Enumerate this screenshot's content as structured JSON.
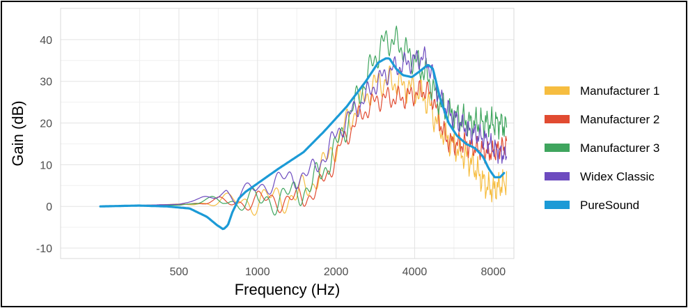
{
  "chart_data": {
    "type": "line",
    "xlabel": "Frequency (Hz)",
    "ylabel": "Gain (dB)",
    "x_scale": "log2",
    "xlim": [
      176,
      9600
    ],
    "ylim": [
      -12.5,
      47.5
    ],
    "x_ticks": [
      500,
      1000,
      2000,
      4000,
      8000
    ],
    "x_tick_labels": [
      "500",
      "1000",
      "2000",
      "4000",
      "8000"
    ],
    "y_ticks": [
      -10,
      0,
      10,
      20,
      30,
      40
    ],
    "y_tick_labels": [
      "-10",
      "0",
      "10",
      "20",
      "30",
      "40"
    ],
    "grid": true,
    "legend_position": "right",
    "series": [
      {
        "name": "Manufacturer 1",
        "color": "#f6bd40",
        "width": 1.2,
        "x": [
          250,
          400,
          600,
          800,
          1000,
          1200,
          1400,
          1600,
          1800,
          2000,
          2200,
          2500,
          2800,
          3000,
          3300,
          3600,
          4000,
          4400,
          4800,
          5200,
          5600,
          6000,
          6500,
          7000,
          7500,
          8000,
          8500,
          9000
        ],
        "y": [
          0,
          0.3,
          0.8,
          1.2,
          1.5,
          1.8,
          2.5,
          5,
          10,
          15,
          20,
          25,
          29,
          30,
          30,
          29,
          28,
          26,
          21,
          17,
          15,
          13,
          11,
          8,
          5,
          4,
          5,
          6
        ],
        "ripple": 4
      },
      {
        "name": "Manufacturer 2",
        "color": "#e14b31",
        "width": 1.2,
        "x": [
          250,
          500,
          700,
          900,
          1100,
          1300,
          1500,
          1700,
          1900,
          2100,
          2300,
          2500,
          2800,
          3000,
          3300,
          3600,
          4000,
          4400,
          4700,
          5000,
          5300,
          5700,
          6200,
          6800,
          7500,
          8000,
          8500,
          9000
        ],
        "y": [
          0,
          0.5,
          1,
          1.2,
          1.3,
          1.6,
          2,
          4,
          9,
          15,
          19,
          22,
          25,
          26,
          26,
          26,
          27,
          28,
          26,
          20,
          16,
          15,
          15,
          14,
          13,
          13,
          14,
          15
        ],
        "ripple": 3
      },
      {
        "name": "Manufacturer 3",
        "color": "#3fa55e",
        "width": 1.2,
        "x": [
          250,
          500,
          650,
          750,
          850,
          1000,
          1200,
          1400,
          1600,
          1800,
          2000,
          2200,
          2500,
          2800,
          3000,
          3300,
          3600,
          4000,
          4400,
          4800,
          5200,
          5600,
          6000,
          6500,
          7000,
          7500,
          8000,
          8500,
          9000
        ],
        "y": [
          0,
          0.3,
          1,
          2,
          1,
          1,
          2,
          3,
          5,
          9,
          14,
          20,
          28,
          35,
          39,
          40,
          38,
          35,
          32,
          27,
          23,
          22,
          21,
          20,
          20,
          20,
          20,
          20,
          19
        ],
        "ripple": 4
      },
      {
        "name": "Widex Classic",
        "color": "#6d4bbf",
        "width": 1.2,
        "x": [
          250,
          500,
          600,
          700,
          760,
          820,
          900,
          1000,
          1200,
          1400,
          1600,
          1800,
          2000,
          2200,
          2500,
          2800,
          3000,
          3300,
          3600,
          4000,
          4300,
          4600,
          5000,
          5500,
          6000,
          6500,
          7000,
          7500,
          8000,
          8500,
          9000
        ],
        "y": [
          0,
          0.5,
          1.5,
          3,
          4,
          1.5,
          3,
          5,
          6,
          7,
          8,
          12,
          17,
          21,
          25,
          29,
          31,
          33,
          34,
          35,
          36,
          33,
          26,
          22,
          20,
          18,
          17,
          16,
          14,
          13,
          12
        ],
        "ripple": 3
      },
      {
        "name": "PureSound",
        "color": "#1b9ad6",
        "width": 3.2,
        "x": [
          250,
          350,
          450,
          550,
          640,
          700,
          740,
          770,
          800,
          850,
          900,
          1000,
          1200,
          1500,
          1800,
          2200,
          2600,
          2900,
          3100,
          3200,
          3400,
          3600,
          3900,
          4200,
          4500,
          4700,
          5000,
          5400,
          5800,
          6300,
          6800,
          7300,
          7700,
          8100,
          8500,
          8800
        ],
        "y": [
          0,
          0.2,
          0,
          -0.5,
          -2.5,
          -4.5,
          -5.5,
          -4.5,
          -1.5,
          2,
          3.5,
          5.5,
          9,
          13,
          18,
          24,
          30,
          34.5,
          35.5,
          35.5,
          33,
          31.5,
          31,
          32.5,
          34,
          33,
          26,
          20,
          17,
          15,
          14,
          12,
          9,
          7,
          7,
          8
        ],
        "ripple": 0
      }
    ]
  }
}
